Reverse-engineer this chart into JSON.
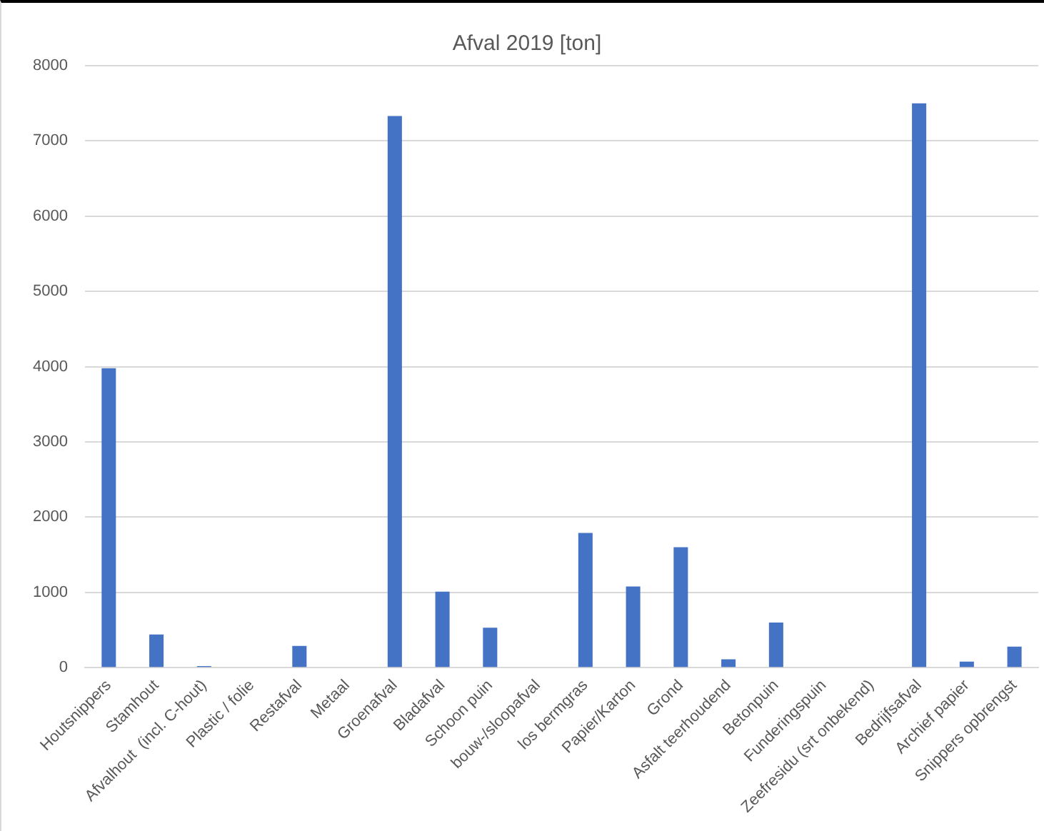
{
  "chart_data": {
    "type": "bar",
    "title": "Afval 2019 [ton]",
    "categories": [
      "Houtsnippers",
      "Stamhout",
      "Afvalhout  (incl. C-hout)",
      "Plastic / folie",
      "Restafval",
      "Metaal",
      "Groenafval",
      "Bladafval",
      "Schoon puin",
      "bouw-/sloopafval",
      "los bermgras",
      "Papier/Karton",
      "Grond",
      "Asfalt teerhoudend",
      "Betonpuin",
      "Funderingspuin",
      "Zeefresidu (srt onbekend)",
      "Bedrijfsafval",
      "Archief papier",
      "Snippers opbrengst"
    ],
    "values": [
      3980,
      440,
      20,
      0,
      290,
      0,
      7330,
      1010,
      530,
      0,
      1790,
      1080,
      1600,
      110,
      600,
      0,
      0,
      7500,
      80,
      280
    ],
    "color": "#4472c4",
    "ylim": [
      0,
      8000
    ],
    "yticks": [
      0,
      1000,
      2000,
      3000,
      4000,
      5000,
      6000,
      7000,
      8000
    ],
    "grid": "y"
  }
}
